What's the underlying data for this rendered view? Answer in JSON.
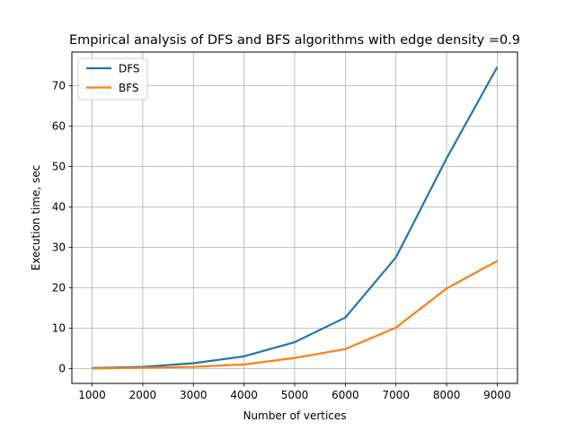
{
  "chart_data": {
    "type": "line",
    "title": "Empirical analysis of DFS and BFS algorithms with edge density =0.9",
    "xlabel": "Number of vertices",
    "ylabel": "Execution time, sec",
    "x": [
      1000,
      2000,
      3000,
      4000,
      5000,
      6000,
      7000,
      8000,
      9000
    ],
    "xticks": [
      "1000",
      "2000",
      "3000",
      "4000",
      "5000",
      "6000",
      "7000",
      "8000",
      "9000"
    ],
    "yticks": [
      "0",
      "10",
      "20",
      "30",
      "40",
      "50",
      "60",
      "70"
    ],
    "xlim": [
      600,
      9400
    ],
    "ylim": [
      -3.7,
      78.3
    ],
    "grid": true,
    "legend_position": "top-left",
    "series": [
      {
        "name": "DFS",
        "color": "#1f77b4",
        "values": [
          0.1,
          0.4,
          1.3,
          3.0,
          6.5,
          12.6,
          27.5,
          52.0,
          74.6
        ]
      },
      {
        "name": "BFS",
        "color": "#ff7f0e",
        "values": [
          0.0,
          0.15,
          0.4,
          1.0,
          2.6,
          4.8,
          10.1,
          19.8,
          26.6
        ]
      }
    ]
  }
}
